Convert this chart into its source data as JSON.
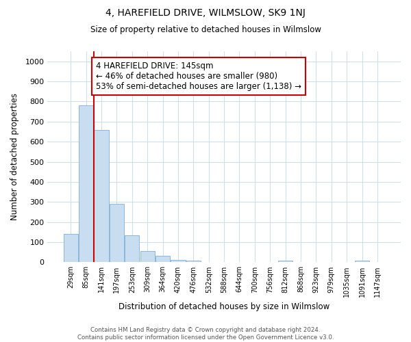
{
  "title": "4, HAREFIELD DRIVE, WILMSLOW, SK9 1NJ",
  "subtitle": "Size of property relative to detached houses in Wilmslow",
  "xlabel": "Distribution of detached houses by size in Wilmslow",
  "ylabel": "Number of detached properties",
  "bar_color": "#c8ddef",
  "bar_edge_color": "#7aaed6",
  "vline_color": "#cc0000",
  "vline_index": 1.5,
  "annotation_text": "4 HAREFIELD DRIVE: 145sqm\n← 46% of detached houses are smaller (980)\n53% of semi-detached houses are larger (1,138) →",
  "annotation_box_color": "#cc0000",
  "categories": [
    "29sqm",
    "85sqm",
    "141sqm",
    "197sqm",
    "253sqm",
    "309sqm",
    "364sqm",
    "420sqm",
    "476sqm",
    "532sqm",
    "588sqm",
    "644sqm",
    "700sqm",
    "756sqm",
    "812sqm",
    "868sqm",
    "923sqm",
    "979sqm",
    "1035sqm",
    "1091sqm",
    "1147sqm"
  ],
  "values": [
    140,
    780,
    660,
    290,
    135,
    55,
    32,
    13,
    8,
    3,
    0,
    0,
    0,
    0,
    7,
    0,
    0,
    0,
    0,
    8,
    0
  ],
  "ylim": [
    0,
    1050
  ],
  "yticks": [
    0,
    100,
    200,
    300,
    400,
    500,
    600,
    700,
    800,
    900,
    1000
  ],
  "footer_text": "Contains HM Land Registry data © Crown copyright and database right 2024.\nContains public sector information licensed under the Open Government Licence v3.0.",
  "bg_color": "#ffffff",
  "grid_color": "#ccdde8",
  "figsize": [
    6.0,
    5.0
  ],
  "dpi": 100
}
